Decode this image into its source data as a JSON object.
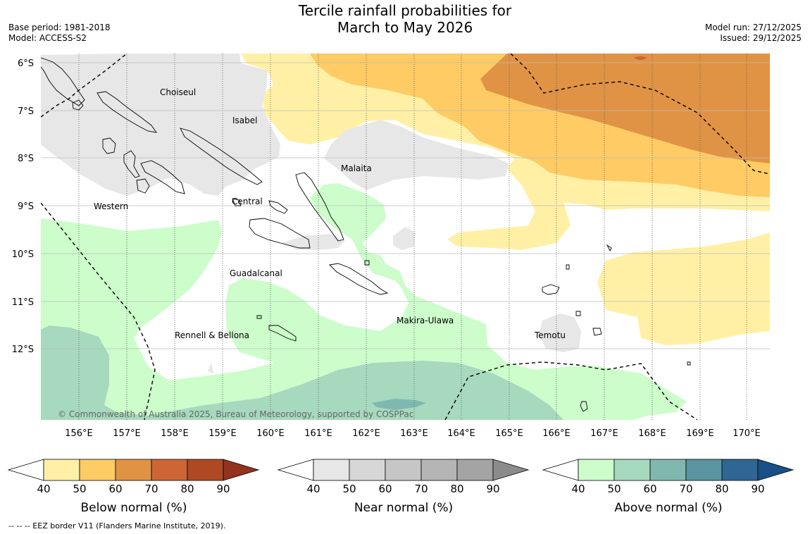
{
  "title": {
    "line1": "Tercile rainfall probabilities for",
    "line2": "March to May 2026"
  },
  "meta": {
    "base_period": "Base period: 1981-2018",
    "model": "Model: ACCESS-S2",
    "model_run": "Model run: 27/12/2025",
    "issued": "Issued: 29/12/2025"
  },
  "map": {
    "lat_labels": [
      "6°S",
      "7°S",
      "8°S",
      "9°S",
      "10°S",
      "11°S",
      "12°S"
    ],
    "lon_labels": [
      "156°E",
      "157°E",
      "158°E",
      "159°E",
      "160°E",
      "161°E",
      "162°E",
      "163°E",
      "164°E",
      "165°E",
      "166°E",
      "167°E",
      "168°E",
      "169°E",
      "170°E"
    ],
    "regions": {
      "choiseul": "Choiseul",
      "isabel": "Isabel",
      "malaita": "Malaita",
      "western": "Western",
      "central": "Central",
      "guadalcanal": "Guadalcanal",
      "makira": "Makira-Ulawa",
      "rennell": "Rennell & Bellona",
      "temotu": "Temotu"
    },
    "copyright": "© Commonwealth of Australia 2025, Bureau of Meteorology, supported by COSPPac"
  },
  "colorbars": {
    "ticks": [
      "40",
      "50",
      "60",
      "70",
      "80",
      "90"
    ],
    "below": {
      "label": "Below normal (%)",
      "colors": [
        "#fff0a6",
        "#fecb65",
        "#e09344",
        "#cd6535",
        "#af4923",
        "#93331d"
      ]
    },
    "near": {
      "label": "Near normal (%)",
      "colors": [
        "#e7e7e7",
        "#d7d7d7",
        "#c6c6c6",
        "#b5b5b5",
        "#a4a4a4",
        "#8b8b8b"
      ]
    },
    "above": {
      "label": "Above normal (%)",
      "colors": [
        "#ccfdcb",
        "#a6d9bd",
        "#80b8b0",
        "#5a94a0",
        "#2f6694",
        "#174f86"
      ]
    }
  },
  "eez_note": "--  --  -- EEZ border V11 (Flanders Marine Institute, 2019)."
}
